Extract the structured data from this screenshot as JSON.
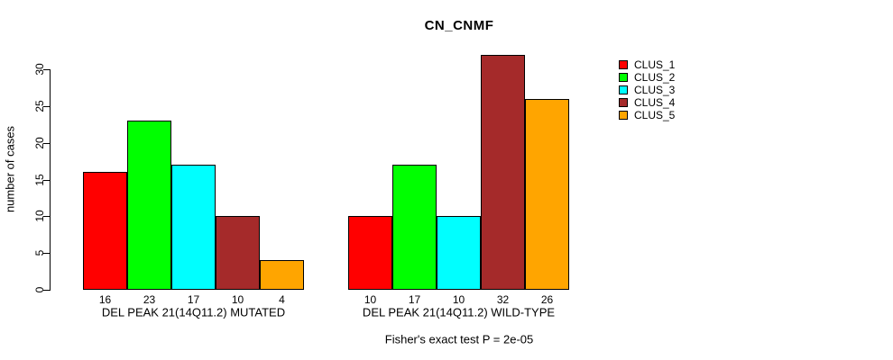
{
  "chart_data": {
    "type": "bar",
    "title": "CN_CNMF",
    "ylabel": "number of cases",
    "xlabel": "",
    "ylim": [
      0,
      30
    ],
    "yticks": [
      0,
      5,
      10,
      15,
      20,
      25,
      30
    ],
    "grid": false,
    "legend_position": "right",
    "bar_value_labels_shown": true,
    "categories": [
      "DEL PEAK 21(14Q11.2) MUTATED",
      "DEL PEAK 21(14Q11.2) WILD-TYPE"
    ],
    "series": [
      {
        "name": "CLUS_1",
        "color": "#FF0000",
        "values": [
          16,
          10
        ]
      },
      {
        "name": "CLUS_2",
        "color": "#00FF00",
        "values": [
          23,
          17
        ]
      },
      {
        "name": "CLUS_3",
        "color": "#00FFFF",
        "values": [
          17,
          10
        ]
      },
      {
        "name": "CLUS_4",
        "color": "#A52A2A",
        "values": [
          10,
          32
        ]
      },
      {
        "name": "CLUS_5",
        "color": "#FFA500",
        "values": [
          4,
          26
        ]
      }
    ],
    "annotation": "Fisher's exact test P = 2e-05"
  }
}
